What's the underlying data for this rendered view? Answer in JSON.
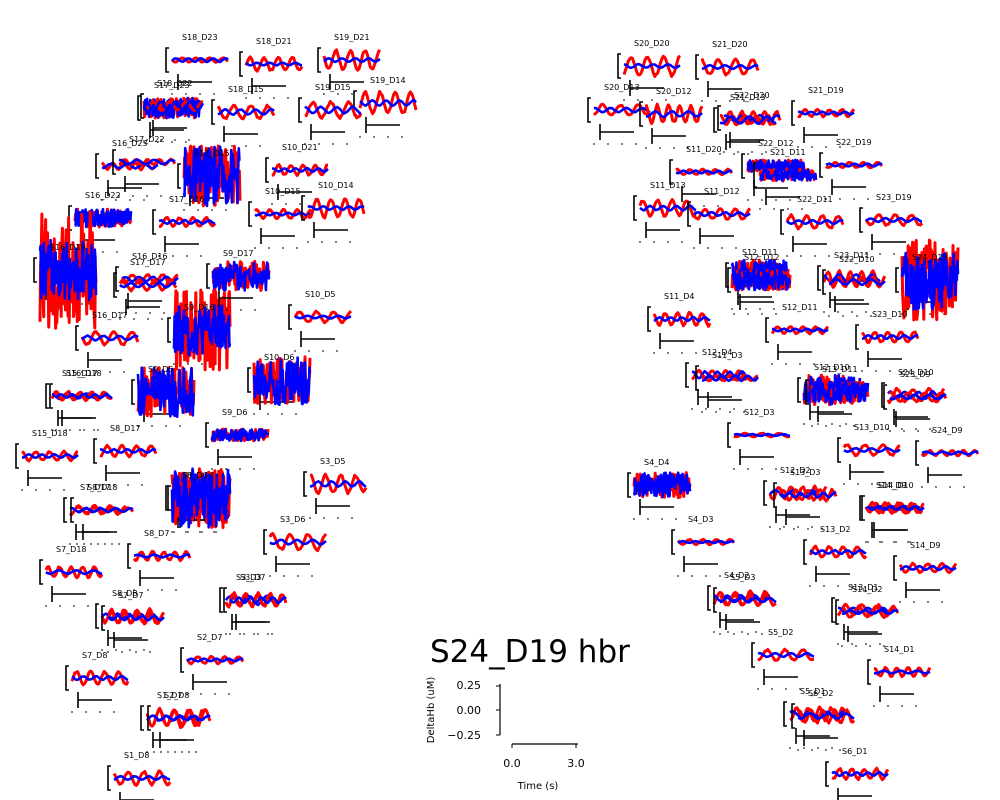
{
  "chart_data": {
    "type": "line",
    "title": "S24_D19 hbr",
    "xlabel": "Time (s)",
    "ylabel": "DeltaHb (uM)",
    "yticks": [
      "0.25",
      "0.00",
      "−0.25"
    ],
    "xticks": [
      "0.0",
      "3.0"
    ],
    "ylim": [
      -0.3,
      0.3
    ],
    "series_colors": {
      "hbo": "#ff0000",
      "hbr": "#0000ff"
    },
    "channels": [
      {
        "name": "S18_D23",
        "amp_hbo": 0.05,
        "amp_hbr": 0.04,
        "noisy": false
      },
      {
        "name": "S18_D21",
        "amp_hbo": 0.15,
        "amp_hbr": 0.03,
        "noisy": false
      },
      {
        "name": "S19_D21",
        "amp_hbo": 0.22,
        "amp_hbr": 0.04,
        "noisy": false
      },
      {
        "name": "S19_D14",
        "amp_hbo": 0.25,
        "amp_hbr": 0.06,
        "noisy": false
      },
      {
        "name": "S17_D23",
        "amp_hbo": 0.2,
        "amp_hbr": 0.2,
        "noisy": true
      },
      {
        "name": "S18_D22",
        "amp_hbo": 0.1,
        "amp_hbr": 0.1,
        "noisy": false
      },
      {
        "name": "S18_D15",
        "amp_hbo": 0.15,
        "amp_hbr": 0.06,
        "noisy": false
      },
      {
        "name": "S19_D15",
        "amp_hbo": 0.18,
        "amp_hbr": 0.07,
        "noisy": false
      },
      {
        "name": "S16_D23",
        "amp_hbo": 0.08,
        "amp_hbr": 0.05,
        "noisy": false
      },
      {
        "name": "S17_D22",
        "amp_hbo": 0.06,
        "amp_hbr": 0.05,
        "noisy": false
      },
      {
        "name": "S17_D15",
        "amp_hbo": 0.6,
        "amp_hbr": 0.6,
        "noisy": true
      },
      {
        "name": "S10_D21",
        "amp_hbo": 0.12,
        "amp_hbr": 0.04,
        "noisy": false
      },
      {
        "name": "S16_D22",
        "amp_hbo": 0.18,
        "amp_hbr": 0.18,
        "noisy": true
      },
      {
        "name": "S17_D16",
        "amp_hbo": 0.1,
        "amp_hbr": 0.04,
        "noisy": false
      },
      {
        "name": "S10_D15",
        "amp_hbo": 0.1,
        "amp_hbr": 0.03,
        "noisy": false
      },
      {
        "name": "S10_D14",
        "amp_hbo": 0.22,
        "amp_hbr": 0.04,
        "noisy": false
      },
      {
        "name": "S16_D19",
        "amp_hbo": 1.2,
        "amp_hbr": 0.6,
        "noisy": true
      },
      {
        "name": "S16_D16",
        "amp_hbo": 0.1,
        "amp_hbr": 0.05,
        "noisy": false
      },
      {
        "name": "S17_D17",
        "amp_hbo": 0.12,
        "amp_hbr": 0.05,
        "noisy": false
      },
      {
        "name": "S9_D16",
        "amp_hbo": 0.8,
        "amp_hbr": 0.5,
        "noisy": true
      },
      {
        "name": "S10_D5",
        "amp_hbo": 0.12,
        "amp_hbr": 0.03,
        "noisy": false
      },
      {
        "name": "S16_D17",
        "amp_hbo": 0.15,
        "amp_hbr": 0.05,
        "noisy": false
      },
      {
        "name": "S9_D17",
        "amp_hbo": 0.3,
        "amp_hbr": 0.3,
        "noisy": true
      },
      {
        "name": "S9_D5",
        "amp_hbo": 0.5,
        "amp_hbr": 0.5,
        "noisy": true
      },
      {
        "name": "S15_D17",
        "amp_hbo": 0.1,
        "amp_hbr": 0.06,
        "noisy": false
      },
      {
        "name": "S16_D18",
        "amp_hbo": 0.06,
        "amp_hbr": 0.04,
        "noisy": false
      },
      {
        "name": "S9_D18",
        "amp_hbo": 0.5,
        "amp_hbr": 0.5,
        "noisy": true
      },
      {
        "name": "S10_D6",
        "amp_hbo": 0.5,
        "amp_hbr": 0.5,
        "noisy": true
      },
      {
        "name": "S9_D6",
        "amp_hbo": 0.12,
        "amp_hbr": 0.12,
        "noisy": true
      },
      {
        "name": "S15_D18",
        "amp_hbo": 0.1,
        "amp_hbr": 0.04,
        "noisy": false
      },
      {
        "name": "S8_D17",
        "amp_hbo": 0.12,
        "amp_hbr": 0.04,
        "noisy": false
      },
      {
        "name": "S3_D5",
        "amp_hbo": 0.2,
        "amp_hbr": 0.06,
        "noisy": false
      },
      {
        "name": "S7_D17",
        "amp_hbo": 0.1,
        "amp_hbr": 0.05,
        "noisy": false
      },
      {
        "name": "S8_D18",
        "amp_hbo": 0.06,
        "amp_hbr": 0.04,
        "noisy": false
      },
      {
        "name": "S8_D6",
        "amp_hbo": 0.6,
        "amp_hbr": 0.6,
        "noisy": true
      },
      {
        "name": "S3_D6",
        "amp_hbo": 0.18,
        "amp_hbr": 0.05,
        "noisy": false
      },
      {
        "name": "S8_D7",
        "amp_hbo": 0.1,
        "amp_hbr": 0.03,
        "noisy": false
      },
      {
        "name": "S7_D18",
        "amp_hbo": 0.12,
        "amp_hbr": 0.04,
        "noisy": false
      },
      {
        "name": "S3_D3",
        "amp_hbo": 0.15,
        "amp_hbr": 0.1,
        "noisy": false
      },
      {
        "name": "S3_D7",
        "amp_hbo": 0.12,
        "amp_hbr": 0.06,
        "noisy": false
      },
      {
        "name": "S8_D8",
        "amp_hbo": 0.15,
        "amp_hbr": 0.05,
        "noisy": false
      },
      {
        "name": "S7_D7",
        "amp_hbo": 0.12,
        "amp_hbr": 0.05,
        "noisy": false
      },
      {
        "name": "S2_D7",
        "amp_hbo": 0.08,
        "amp_hbr": 0.03,
        "noisy": false
      },
      {
        "name": "S7_D8",
        "amp_hbo": 0.15,
        "amp_hbr": 0.04,
        "noisy": false
      },
      {
        "name": "S1_D7",
        "amp_hbo": 0.2,
        "amp_hbr": 0.06,
        "noisy": false
      },
      {
        "name": "S2_D8",
        "amp_hbo": 0.18,
        "amp_hbr": 0.05,
        "noisy": false
      },
      {
        "name": "S1_D8",
        "amp_hbo": 0.15,
        "amp_hbr": 0.04,
        "noisy": false
      },
      {
        "name": "S20_D20",
        "amp_hbo": 0.22,
        "amp_hbr": 0.04,
        "noisy": false
      },
      {
        "name": "S21_D20",
        "amp_hbo": 0.18,
        "amp_hbr": 0.04,
        "noisy": false
      },
      {
        "name": "S20_D13",
        "amp_hbo": 0.12,
        "amp_hbr": 0.05,
        "noisy": false
      },
      {
        "name": "S20_D12",
        "amp_hbo": 0.2,
        "amp_hbr": 0.06,
        "noisy": false
      },
      {
        "name": "S22_D20",
        "amp_hbo": 0.15,
        "amp_hbr": 0.06,
        "noisy": false
      },
      {
        "name": "S21_D13",
        "amp_hbo": 0.1,
        "amp_hbr": 0.08,
        "noisy": false
      },
      {
        "name": "S21_D19",
        "amp_hbo": 0.08,
        "amp_hbr": 0.03,
        "noisy": false
      },
      {
        "name": "S11_D20",
        "amp_hbo": 0.06,
        "amp_hbr": 0.03,
        "noisy": false
      },
      {
        "name": "S22_D12",
        "amp_hbo": 0.12,
        "amp_hbr": 0.12,
        "noisy": true
      },
      {
        "name": "S21_D11",
        "amp_hbo": 0.12,
        "amp_hbr": 0.12,
        "noisy": true
      },
      {
        "name": "S22_D19",
        "amp_hbo": 0.06,
        "amp_hbr": 0.03,
        "noisy": false
      },
      {
        "name": "S11_D13",
        "amp_hbo": 0.18,
        "amp_hbr": 0.05,
        "noisy": false
      },
      {
        "name": "S11_D12",
        "amp_hbo": 0.12,
        "amp_hbr": 0.04,
        "noisy": false
      },
      {
        "name": "S22_D11",
        "amp_hbo": 0.15,
        "amp_hbr": 0.04,
        "noisy": false
      },
      {
        "name": "S23_D19",
        "amp_hbo": 0.12,
        "amp_hbr": 0.04,
        "noisy": false
      },
      {
        "name": "S12_D11",
        "amp_hbo": 0.3,
        "amp_hbr": 0.3,
        "noisy": true
      },
      {
        "name": "S12_D12",
        "amp_hbo": 0.2,
        "amp_hbr": 0.2,
        "noisy": true
      },
      {
        "name": "S23_D11",
        "amp_hbo": 0.15,
        "amp_hbr": 0.08,
        "noisy": false
      },
      {
        "name": "S22_D10",
        "amp_hbo": 0.12,
        "amp_hbr": 0.06,
        "noisy": false
      },
      {
        "name": "S24_D19",
        "amp_hbo": 0.8,
        "amp_hbr": 0.6,
        "noisy": true
      },
      {
        "name": "S11_D4",
        "amp_hbo": 0.15,
        "amp_hbr": 0.04,
        "noisy": false
      },
      {
        "name": "S12_D11b",
        "amp_hbo": 0.08,
        "amp_hbr": 0.03,
        "noisy": false
      },
      {
        "name": "S23_D10",
        "amp_hbo": 0.12,
        "amp_hbr": 0.04,
        "noisy": false
      },
      {
        "name": "S12_D4",
        "amp_hbo": 0.1,
        "amp_hbr": 0.08,
        "noisy": false
      },
      {
        "name": "S11_D3",
        "amp_hbo": 0.06,
        "amp_hbr": 0.06,
        "noisy": false
      },
      {
        "name": "S12_D10",
        "amp_hbo": 0.3,
        "amp_hbr": 0.3,
        "noisy": true
      },
      {
        "name": "S13_D11",
        "amp_hbo": 0.2,
        "amp_hbr": 0.2,
        "noisy": true
      },
      {
        "name": "S24_D10",
        "amp_hbo": 0.15,
        "amp_hbr": 0.08,
        "noisy": false
      },
      {
        "name": "S23_D9",
        "amp_hbo": 0.1,
        "amp_hbr": 0.05,
        "noisy": false
      },
      {
        "name": "S12_D3",
        "amp_hbo": 0.04,
        "amp_hbr": 0.02,
        "noisy": false
      },
      {
        "name": "S13_D10",
        "amp_hbo": 0.12,
        "amp_hbr": 0.04,
        "noisy": false
      },
      {
        "name": "S24_D9",
        "amp_hbo": 0.06,
        "amp_hbr": 0.03,
        "noisy": false
      },
      {
        "name": "S4_D4",
        "amp_hbo": 0.25,
        "amp_hbr": 0.25,
        "noisy": true
      },
      {
        "name": "S12_D2",
        "amp_hbo": 0.15,
        "amp_hbr": 0.06,
        "noisy": false
      },
      {
        "name": "S13_D3",
        "amp_hbo": 0.12,
        "amp_hbr": 0.05,
        "noisy": false
      },
      {
        "name": "S14_D9",
        "amp_hbo": 0.1,
        "amp_hbr": 0.04,
        "noisy": false
      },
      {
        "name": "S14_D10",
        "amp_hbo": 0.12,
        "amp_hbr": 0.04,
        "noisy": false
      },
      {
        "name": "S4_D3",
        "amp_hbo": 0.06,
        "amp_hbr": 0.02,
        "noisy": false
      },
      {
        "name": "S13_D2",
        "amp_hbo": 0.12,
        "amp_hbr": 0.04,
        "noisy": false
      },
      {
        "name": "S14_D9b",
        "amp_hbo": 0.1,
        "amp_hbr": 0.04,
        "noisy": false
      },
      {
        "name": "S4_D2",
        "amp_hbo": 0.15,
        "amp_hbr": 0.06,
        "noisy": false
      },
      {
        "name": "S5_D3",
        "amp_hbo": 0.12,
        "amp_hbr": 0.05,
        "noisy": false
      },
      {
        "name": "S13_D1",
        "amp_hbo": 0.12,
        "amp_hbr": 0.05,
        "noisy": false
      },
      {
        "name": "S14_D2",
        "amp_hbo": 0.12,
        "amp_hbr": 0.04,
        "noisy": false
      },
      {
        "name": "S5_D2",
        "amp_hbo": 0.12,
        "amp_hbr": 0.04,
        "noisy": false
      },
      {
        "name": "S14_D1",
        "amp_hbo": 0.1,
        "amp_hbr": 0.03,
        "noisy": false
      },
      {
        "name": "S5_D1",
        "amp_hbo": 0.15,
        "amp_hbr": 0.06,
        "noisy": false
      },
      {
        "name": "S6_D2",
        "amp_hbo": 0.15,
        "amp_hbr": 0.06,
        "noisy": false
      },
      {
        "name": "S6_D1",
        "amp_hbo": 0.12,
        "amp_hbr": 0.04,
        "noisy": false
      }
    ],
    "channel_labels": {
      "S18_D23": "S18_D23",
      "S18_D21": "S18_D21",
      "S19_D21": "S19_D21",
      "S19_D14": "S19_D14",
      "S17_D23": "S17_D23",
      "S18_D22": "S18_D22",
      "S18_D15": "S18_D15",
      "S19_D15": "S19_D15",
      "S16_D23": "S16_D23",
      "S17_D22": "S17_D22",
      "S17_D15": "S17_D15",
      "S10_D21": "S10_D21",
      "S16_D22": "S16_D22",
      "S17_D16": "S17_D16",
      "S10_D15": "S10_D15",
      "S10_D14": "S10_D14",
      "S16_D19": "S16_D19",
      "S16_D16": "S16_D16",
      "S17_D17": "S17_D17",
      "S9_D16": "S9_D16",
      "S10_D5": "S10_D5",
      "S16_D17": "S16_D17",
      "S9_D17": "S9_D17",
      "S9_D5": "S9_D5",
      "S15_D17": "S15_D17",
      "S16_D18": "S16_D18",
      "S9_D18": "S9_D18",
      "S10_D6": "S10_D6",
      "S9_D6": "S9_D6",
      "S15_D18": "S15_D18",
      "S8_D17": "S8_D17",
      "S3_D5": "S3_D5",
      "S7_D17": "S7_D17",
      "S8_D18": "S8_D18",
      "S8_D6": "S8_D6",
      "S3_D6": "S3_D6",
      "S8_D7": "S8_D7",
      "S7_D18": "S7_D18",
      "S3_D3": "S3_D3",
      "S3_D7": "S3_D7",
      "S8_D8": "S8_D8",
      "S7_D7": "S7_D7",
      "S2_D7": "S2_D7",
      "S7_D8": "S7_D8",
      "S1_D7": "S1_D7",
      "S2_D8": "S2_D8",
      "S1_D8": "S1_D8",
      "S20_D20": "S20_D20",
      "S21_D20": "S21_D20",
      "S20_D13": "S20_D13",
      "S20_D12": "S20_D12",
      "S22_D20": "S22_D20",
      "S21_D13": "S21_D13",
      "S21_D19": "S21_D19",
      "S11_D20": "S11_D20",
      "S22_D12": "S22_D12",
      "S21_D11": "S21_D11",
      "S22_D19": "S22_D19",
      "S11_D13": "S11_D13",
      "S11_D12": "S11_D12",
      "S22_D11": "S22_D11",
      "S23_D19": "S23_D19",
      "S12_D11": "S12_D11",
      "S12_D12": "S12_D12",
      "S23_D11": "S23_D11",
      "S22_D10": "S22_D10",
      "S24_D19": "S24_D19",
      "S11_D4": "S11_D4",
      "S12_D11b": "S12_D11",
      "S23_D10": "S23_D10",
      "S12_D4": "S12_D4",
      "S11_D3": "S11_D3",
      "S12_D10": "S12_D10",
      "S13_D11": "S13_D11",
      "S24_D10": "S24_D10",
      "S23_D9": "S23_D9",
      "S12_D3": "S12_D3",
      "S13_D10": "S13_D10",
      "S24_D9": "S24_D9",
      "S4_D4": "S4_D4",
      "S12_D2": "S12_D2",
      "S13_D3": "S13_D3",
      "S14_D9": "S14_D9",
      "S14_D10": "S14_D10",
      "S4_D3": "S4_D3",
      "S13_D2": "S13_D2",
      "S14_D9b": "S14_D9",
      "S4_D2": "S4_D2",
      "S5_D3": "S5_D3",
      "S13_D1": "S13_D1",
      "S14_D2": "S14_D2",
      "S5_D2": "S5_D2",
      "S14_D1": "S14_D1",
      "S5_D1": "S5_D1",
      "S6_D2": "S6_D2",
      "S6_D1": "S6_D1"
    }
  }
}
